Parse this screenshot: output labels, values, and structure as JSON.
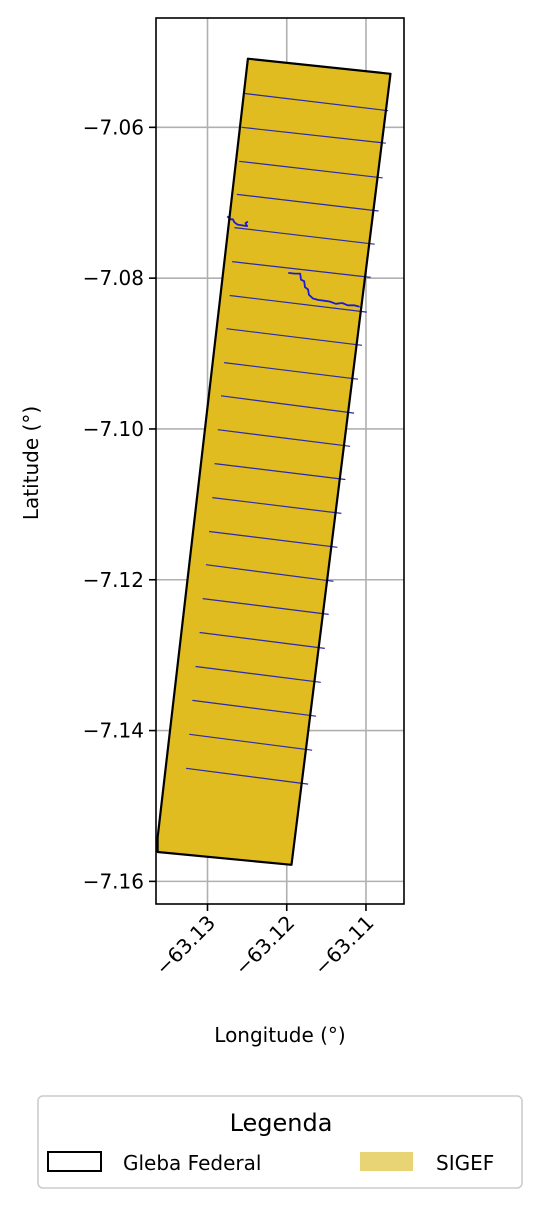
{
  "chart_data": {
    "type": "map",
    "xlabel": "Longitude (°)",
    "ylabel": "Latitude (°)",
    "xlim": [
      -63.1365,
      -63.1052
    ],
    "ylim": [
      -7.163,
      -7.0455
    ],
    "x_ticks": [
      {
        "value": -63.13,
        "label": "−63.13"
      },
      {
        "value": -63.12,
        "label": "−63.12"
      },
      {
        "value": -63.11,
        "label": "−63.11"
      }
    ],
    "y_ticks": [
      {
        "value": -7.06,
        "label": "−7.06"
      },
      {
        "value": -7.08,
        "label": "−7.08"
      },
      {
        "value": -7.1,
        "label": "−7.10"
      },
      {
        "value": -7.12,
        "label": "−7.12"
      },
      {
        "value": -7.14,
        "label": "−7.14"
      },
      {
        "value": -7.16,
        "label": "−7.16"
      }
    ],
    "grid": true,
    "layers": [
      {
        "name": "Gleba Federal",
        "kind": "outline",
        "edge_color": "#000000",
        "polygon": [
          [
            -63.1249,
            -7.0509
          ],
          [
            -63.1069,
            -7.0529
          ],
          [
            -63.1194,
            -7.1578
          ],
          [
            -63.1363,
            -7.1561
          ],
          [
            -63.1363,
            -7.1542
          ]
        ]
      },
      {
        "name": "SIGEF",
        "kind": "fill",
        "fill_color": "#e0bc20",
        "legend_color": "#e8d474",
        "divider_color": "#2a2aa8",
        "dividers": [
          {
            "left": [
              -63.1254,
              -7.0555
            ],
            "right": [
              -63.1072,
              -7.0578
            ]
          },
          {
            "left": [
              -63.1257,
              -7.06
            ],
            "right": [
              -63.1075,
              -7.0621
            ]
          },
          {
            "left": [
              -63.126,
              -7.0645
            ],
            "right": [
              -63.1079,
              -7.0667
            ]
          },
          {
            "left": [
              -63.1263,
              -7.0689
            ],
            "right": [
              -63.1084,
              -7.0711
            ]
          },
          {
            "left": [
              -63.1266,
              -7.0733
            ],
            "right": [
              -63.1089,
              -7.0755
            ]
          },
          {
            "left": [
              -63.1269,
              -7.0778
            ],
            "right": [
              -63.1094,
              -7.0799
            ]
          },
          {
            "left": [
              -63.1272,
              -7.0823
            ],
            "right": [
              -63.1099,
              -7.0845
            ]
          },
          {
            "left": [
              -63.1276,
              -7.0867
            ],
            "right": [
              -63.1105,
              -7.0889
            ]
          },
          {
            "left": [
              -63.1279,
              -7.0912
            ],
            "right": [
              -63.111,
              -7.0934
            ]
          },
          {
            "left": [
              -63.1283,
              -7.0956
            ],
            "right": [
              -63.1115,
              -7.0979
            ]
          },
          {
            "left": [
              -63.1287,
              -7.1001
            ],
            "right": [
              -63.112,
              -7.1023
            ]
          },
          {
            "left": [
              -63.1291,
              -7.1046
            ],
            "right": [
              -63.1126,
              -7.1067
            ]
          },
          {
            "left": [
              -63.1294,
              -7.1091
            ],
            "right": [
              -63.1131,
              -7.1112
            ]
          },
          {
            "left": [
              -63.1298,
              -7.1136
            ],
            "right": [
              -63.1136,
              -7.1157
            ]
          },
          {
            "left": [
              -63.1302,
              -7.118
            ],
            "right": [
              -63.1141,
              -7.1202
            ]
          },
          {
            "left": [
              -63.1306,
              -7.1225
            ],
            "right": [
              -63.1147,
              -7.1246
            ]
          },
          {
            "left": [
              -63.131,
              -7.127
            ],
            "right": [
              -63.1152,
              -7.1291
            ]
          },
          {
            "left": [
              -63.1315,
              -7.1315
            ],
            "right": [
              -63.1157,
              -7.1336
            ]
          },
          {
            "left": [
              -63.1319,
              -7.136
            ],
            "right": [
              -63.1163,
              -7.1381
            ]
          },
          {
            "left": [
              -63.1323,
              -7.1405
            ],
            "right": [
              -63.1168,
              -7.1426
            ]
          },
          {
            "left": [
              -63.1327,
              -7.145
            ],
            "right": [
              -63.1173,
              -7.1471
            ]
          }
        ]
      },
      {
        "name": "stream",
        "kind": "line",
        "stroke_color": "#1a1ad8",
        "points": [
          [
            -63.1275,
            -7.0718
          ],
          [
            -63.1271,
            -7.0722
          ],
          [
            -63.1268,
            -7.0722
          ],
          [
            -63.1266,
            -7.0726
          ],
          [
            -63.1262,
            -7.0729
          ],
          [
            -63.125,
            -7.0731
          ],
          [
            -63.1252,
            -7.0727
          ],
          [
            -63.1249,
            -7.0725
          ]
        ]
      },
      {
        "name": "stream",
        "kind": "line",
        "stroke_color": "#1a1ad8",
        "points": [
          [
            -63.1198,
            -7.0793
          ],
          [
            -63.119,
            -7.0794
          ],
          [
            -63.1183,
            -7.0794
          ],
          [
            -63.1182,
            -7.0802
          ],
          [
            -63.1178,
            -7.0804
          ],
          [
            -63.1177,
            -7.0812
          ],
          [
            -63.1173,
            -7.0815
          ],
          [
            -63.1172,
            -7.0822
          ],
          [
            -63.1167,
            -7.0827
          ],
          [
            -63.116,
            -7.0829
          ],
          [
            -63.1152,
            -7.083
          ],
          [
            -63.1146,
            -7.0831
          ],
          [
            -63.1138,
            -7.0834
          ],
          [
            -63.113,
            -7.0833
          ],
          [
            -63.1123,
            -7.0836
          ],
          [
            -63.1115,
            -7.0836
          ],
          [
            -63.1108,
            -7.0838
          ]
        ]
      }
    ],
    "legend": {
      "title": "Legenda",
      "placement": "bottom-center",
      "entries": [
        {
          "label": "Gleba Federal",
          "style": "outline",
          "color": "#000000"
        },
        {
          "label": "SIGEF",
          "style": "fill",
          "color": "#e8d474"
        }
      ]
    }
  }
}
